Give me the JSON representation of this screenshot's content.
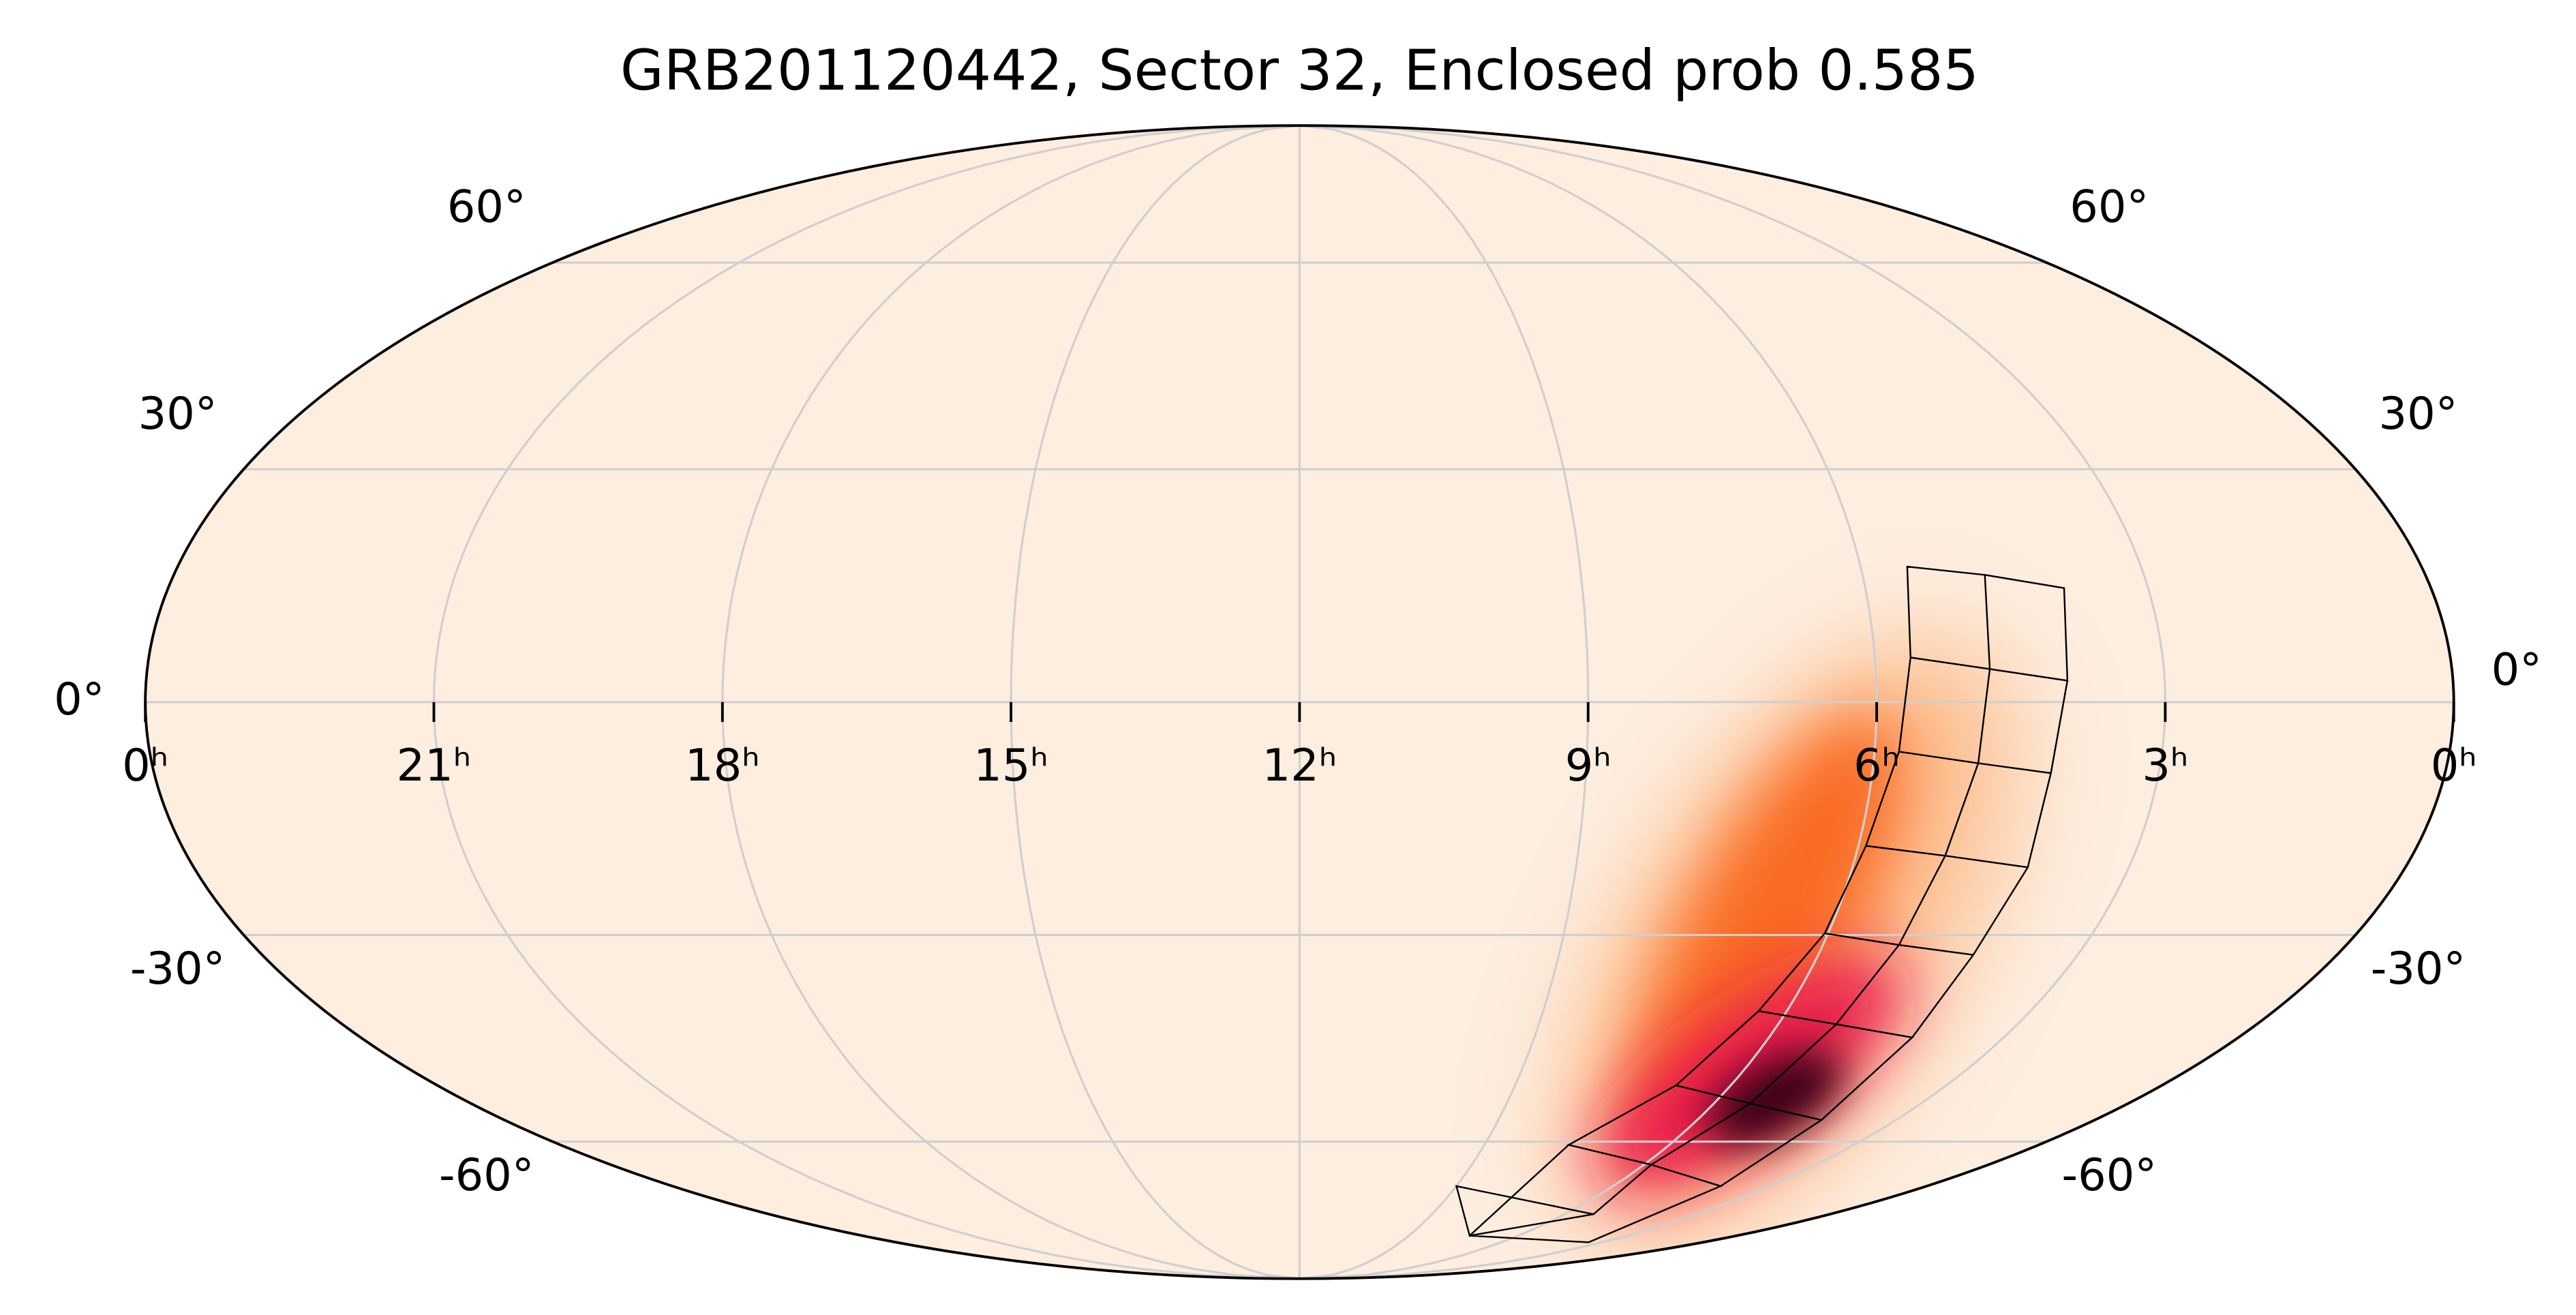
{
  "title": "GRB201120442, Sector 32, Enclosed prob 0.585",
  "ra_ticks": [
    {
      "value": 24,
      "label": "0ʰ"
    },
    {
      "value": 21,
      "label": "21ʰ"
    },
    {
      "value": 18,
      "label": "18ʰ"
    },
    {
      "value": 15,
      "label": "15ʰ"
    },
    {
      "value": 12,
      "label": "12ʰ"
    },
    {
      "value": 9,
      "label": "9ʰ"
    },
    {
      "value": 6,
      "label": "6ʰ"
    },
    {
      "value": 3,
      "label": "3ʰ"
    },
    {
      "value": 0,
      "label": "0ʰ"
    }
  ],
  "dec_ticks": [
    {
      "value": 60,
      "label": "60°"
    },
    {
      "value": 30,
      "label": "30°"
    },
    {
      "value": 0,
      "label": "0°"
    },
    {
      "value": -30,
      "label": "-30°"
    },
    {
      "value": -60,
      "label": "-60°"
    }
  ]
}
